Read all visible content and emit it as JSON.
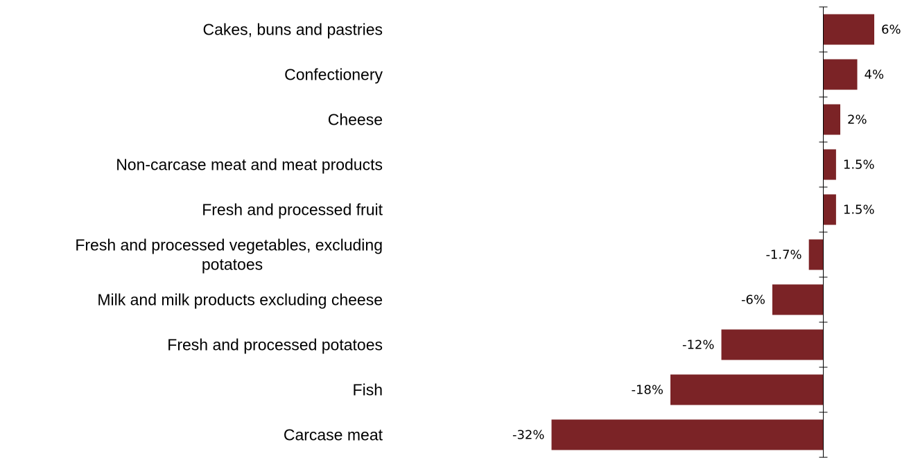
{
  "chart_data": {
    "type": "bar",
    "orientation": "horizontal",
    "title": "",
    "xlabel": "",
    "ylabel": "",
    "categories": [
      "Cakes, buns and pastries",
      "Confectionery",
      "Cheese",
      "Non-carcase meat and meat products",
      "Fresh and processed fruit",
      "Fresh and processed vegetables, excluding potatoes",
      "Milk and milk products excluding cheese",
      "Fresh and processed potatoes",
      "Fish",
      "Carcase meat"
    ],
    "category_lines": [
      [
        "Cakes, buns and pastries"
      ],
      [
        "Confectionery"
      ],
      [
        "Cheese"
      ],
      [
        "Non-carcase meat and meat products"
      ],
      [
        "Fresh and processed fruit"
      ],
      [
        "Fresh and processed vegetables, excluding",
        "potatoes"
      ],
      [
        "Milk and milk products excluding cheese"
      ],
      [
        "Fresh and processed potatoes"
      ],
      [
        "Fish"
      ],
      [
        "Carcase meat"
      ]
    ],
    "values": [
      6,
      4,
      2,
      1.5,
      1.5,
      -1.7,
      -6,
      -12,
      -18,
      -32
    ],
    "data_labels": [
      "6%",
      "4%",
      "2%",
      "1.5%",
      "1.5%",
      "-1.7%",
      "-6%",
      "-12%",
      "-18%",
      "-32%"
    ],
    "xlim": [
      -32,
      6
    ],
    "grid": false,
    "legend": "none",
    "bar_color": "#7b2326"
  }
}
